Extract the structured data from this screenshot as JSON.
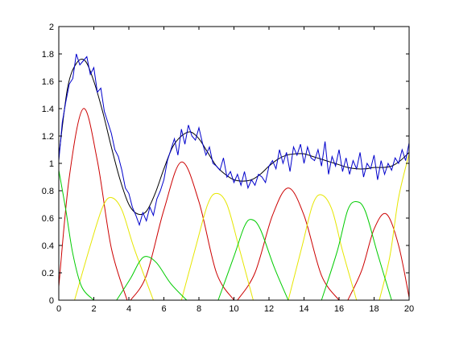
{
  "chart_data": {
    "type": "line",
    "title": "",
    "xlabel": "",
    "ylabel": "",
    "xlim": [
      0,
      20
    ],
    "ylim": [
      0,
      2
    ],
    "xticks": [
      0,
      2,
      4,
      6,
      8,
      10,
      12,
      14,
      16,
      18,
      20
    ],
    "yticks": [
      0,
      0.2,
      0.4,
      0.6,
      0.8,
      1,
      1.2,
      1.4,
      1.6,
      1.8,
      2
    ],
    "xtick_labels": [
      "0",
      "2",
      "4",
      "6",
      "8",
      "10",
      "12",
      "14",
      "16",
      "18",
      "20"
    ],
    "ytick_labels": [
      "0",
      "0.2",
      "0.4",
      "0.6",
      "0.8",
      "1",
      "1.2",
      "1.4",
      "1.6",
      "1.8",
      "2"
    ],
    "grid": false,
    "legend": "none",
    "colors": {
      "noisy": "#0000cc",
      "fit": "#000000",
      "red": "#cc0000",
      "yellow": "#e6e600",
      "green": "#00cc00",
      "axes": "#000000"
    },
    "series": [
      {
        "color_key": "red",
        "peaks": [
          {
            "x": [
              0.0,
              0.6,
              1.4,
              2.2,
              3.0,
              3.9
            ],
            "y": [
              0.1,
              0.9,
              1.4,
              1.02,
              0.38,
              0.0
            ]
          },
          {
            "x": [
              4.1,
              5.0,
              6.0,
              7.0,
              8.0,
              9.0,
              10.0
            ],
            "y": [
              0.0,
              0.18,
              0.66,
              1.01,
              0.72,
              0.2,
              0.0
            ]
          },
          {
            "x": [
              10.2,
              11.2,
              12.2,
              13.1,
              14.0,
              15.0,
              16.0
            ],
            "y": [
              0.0,
              0.2,
              0.62,
              0.82,
              0.62,
              0.18,
              0.0
            ]
          },
          {
            "x": [
              16.5,
              17.3,
              18.0,
              18.7,
              19.4,
              20.0
            ],
            "y": [
              0.0,
              0.22,
              0.52,
              0.63,
              0.4,
              0.02
            ]
          }
        ]
      },
      {
        "color_key": "yellow",
        "peaks": [
          {
            "x": [
              0.9,
              1.8,
              2.5,
              3.0,
              3.6,
              4.3,
              5.4
            ],
            "y": [
              0.0,
              0.4,
              0.68,
              0.75,
              0.66,
              0.38,
              0.0
            ]
          },
          {
            "x": [
              7.0,
              7.8,
              8.5,
              9.0,
              9.6,
              10.3,
              11.1
            ],
            "y": [
              0.0,
              0.38,
              0.7,
              0.78,
              0.7,
              0.38,
              0.0
            ]
          },
          {
            "x": [
              13.1,
              13.9,
              14.5,
              15.0,
              15.6,
              16.2,
              17.0
            ],
            "y": [
              0.0,
              0.4,
              0.7,
              0.77,
              0.66,
              0.36,
              0.0
            ]
          },
          {
            "x": [
              18.3,
              18.9,
              19.4,
              20.0
            ],
            "y": [
              0.0,
              0.32,
              0.75,
              1.07
            ]
          }
        ]
      },
      {
        "color_key": "green",
        "peaks": [
          {
            "x": [
              0.0,
              0.4,
              0.8,
              1.3,
              2.0
            ],
            "y": [
              0.95,
              0.66,
              0.34,
              0.1,
              0.0
            ]
          },
          {
            "x": [
              3.3,
              4.1,
              4.6,
              5.0,
              5.6,
              6.4,
              7.3
            ],
            "y": [
              0.0,
              0.16,
              0.28,
              0.32,
              0.27,
              0.12,
              0.0
            ]
          },
          {
            "x": [
              9.1,
              10.0,
              10.6,
              11.0,
              11.5,
              12.3,
              13.1
            ],
            "y": [
              0.0,
              0.32,
              0.54,
              0.59,
              0.52,
              0.24,
              0.0
            ]
          },
          {
            "x": [
              15.0,
              15.9,
              16.5,
              17.0,
              17.5,
              18.2,
              19.0
            ],
            "y": [
              0.0,
              0.36,
              0.66,
              0.72,
              0.65,
              0.34,
              0.0
            ]
          }
        ]
      },
      {
        "color_key": "fit",
        "x": [
          0,
          0.5,
          1.0,
          1.5,
          2.0,
          2.5,
          3.0,
          3.5,
          4.0,
          4.5,
          5.0,
          5.5,
          6.0,
          6.5,
          7.0,
          7.5,
          8.0,
          8.5,
          9.0,
          9.5,
          10.0,
          10.5,
          11.0,
          11.5,
          12.0,
          12.5,
          13.0,
          13.5,
          14.0,
          14.5,
          15.0,
          15.5,
          16.0,
          16.5,
          17.0,
          17.5,
          18.0,
          18.5,
          19.0,
          19.5,
          20.0
        ],
        "y": [
          1.05,
          1.55,
          1.73,
          1.75,
          1.6,
          1.38,
          1.12,
          0.88,
          0.7,
          0.63,
          0.65,
          0.78,
          0.96,
          1.12,
          1.2,
          1.23,
          1.18,
          1.08,
          0.98,
          0.92,
          0.88,
          0.87,
          0.88,
          0.92,
          0.98,
          1.03,
          1.06,
          1.07,
          1.07,
          1.05,
          1.03,
          1.01,
          0.99,
          0.97,
          0.96,
          0.96,
          0.97,
          0.97,
          0.98,
          1.02,
          1.08
        ]
      },
      {
        "color_key": "noisy",
        "x": [
          0,
          0.2,
          0.4,
          0.6,
          0.8,
          1.0,
          1.2,
          1.4,
          1.6,
          1.8,
          2.0,
          2.2,
          2.4,
          2.6,
          2.8,
          3.0,
          3.2,
          3.4,
          3.6,
          3.8,
          4.0,
          4.2,
          4.4,
          4.6,
          4.8,
          5.0,
          5.2,
          5.4,
          5.6,
          5.8,
          6.0,
          6.2,
          6.4,
          6.6,
          6.8,
          7.0,
          7.2,
          7.4,
          7.6,
          7.8,
          8.0,
          8.2,
          8.4,
          8.6,
          8.8,
          9.0,
          9.2,
          9.4,
          9.6,
          9.8,
          10.0,
          10.2,
          10.4,
          10.6,
          10.8,
          11.0,
          11.2,
          11.4,
          11.6,
          11.8,
          12.0,
          12.2,
          12.4,
          12.6,
          12.8,
          13.0,
          13.2,
          13.4,
          13.6,
          13.8,
          14.0,
          14.2,
          14.4,
          14.6,
          14.8,
          15.0,
          15.2,
          15.4,
          15.6,
          15.8,
          16.0,
          16.2,
          16.4,
          16.6,
          16.8,
          17.0,
          17.2,
          17.4,
          17.6,
          17.8,
          18.0,
          18.2,
          18.4,
          18.6,
          18.8,
          19.0,
          19.2,
          19.4,
          19.6,
          19.8,
          20.0
        ],
        "y": [
          1.02,
          1.3,
          1.45,
          1.58,
          1.62,
          1.8,
          1.72,
          1.75,
          1.78,
          1.65,
          1.7,
          1.52,
          1.55,
          1.38,
          1.3,
          1.22,
          1.1,
          1.05,
          0.95,
          0.82,
          0.78,
          0.68,
          0.62,
          0.55,
          0.64,
          0.58,
          0.68,
          0.62,
          0.74,
          0.8,
          0.88,
          1.02,
          1.1,
          1.18,
          1.06,
          1.25,
          1.14,
          1.28,
          1.2,
          1.17,
          1.26,
          1.15,
          1.06,
          1.12,
          1.0,
          0.98,
          0.95,
          1.04,
          0.9,
          0.94,
          0.86,
          0.92,
          0.84,
          0.94,
          0.82,
          0.88,
          0.84,
          0.92,
          0.9,
          0.86,
          0.98,
          1.02,
          0.96,
          1.1,
          1.0,
          1.08,
          0.94,
          1.12,
          1.06,
          1.14,
          1.0,
          1.12,
          1.04,
          1.02,
          1.1,
          0.98,
          1.16,
          0.92,
          1.05,
          0.98,
          1.1,
          0.94,
          1.04,
          0.92,
          1.02,
          0.96,
          1.08,
          0.9,
          1.0,
          0.96,
          1.06,
          0.88,
          1.02,
          0.92,
          1.0,
          0.95,
          1.04,
          1.0,
          1.1,
          1.02,
          1.15
        ]
      }
    ]
  }
}
